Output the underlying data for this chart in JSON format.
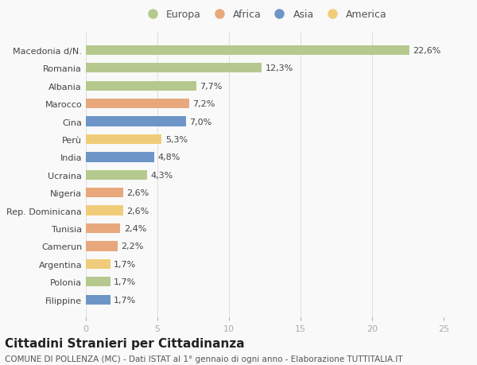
{
  "categories": [
    "Filippine",
    "Polonia",
    "Argentina",
    "Camerun",
    "Tunisia",
    "Rep. Dominicana",
    "Nigeria",
    "Ucraina",
    "India",
    "Perù",
    "Cina",
    "Marocco",
    "Albania",
    "Romania",
    "Macedonia d/N."
  ],
  "values": [
    1.7,
    1.7,
    1.7,
    2.2,
    2.4,
    2.6,
    2.6,
    4.3,
    4.8,
    5.3,
    7.0,
    7.2,
    7.7,
    12.3,
    22.6
  ],
  "continents": [
    "Asia",
    "Europa",
    "America",
    "Africa",
    "Africa",
    "America",
    "Africa",
    "Europa",
    "Asia",
    "America",
    "Asia",
    "Africa",
    "Europa",
    "Europa",
    "Europa"
  ],
  "labels": [
    "1,7%",
    "1,7%",
    "1,7%",
    "2,2%",
    "2,4%",
    "2,6%",
    "2,6%",
    "4,3%",
    "4,8%",
    "5,3%",
    "7,0%",
    "7,2%",
    "7,7%",
    "12,3%",
    "22,6%"
  ],
  "continent_colors": {
    "Europa": "#b5c98e",
    "Africa": "#e8a87c",
    "Asia": "#6e95c7",
    "America": "#f0cc7a"
  },
  "legend_order": [
    "Europa",
    "Africa",
    "Asia",
    "America"
  ],
  "xlim": [
    0,
    25
  ],
  "xticks": [
    0,
    5,
    10,
    15,
    20,
    25
  ],
  "title": "Cittadini Stranieri per Cittadinanza",
  "subtitle": "COMUNE DI POLLENZA (MC) - Dati ISTAT al 1° gennaio di ogni anno - Elaborazione TUTTITALIA.IT",
  "bg_color": "#f9f9f9",
  "grid_color": "#e0e0e0",
  "bar_height": 0.55,
  "label_fontsize": 8,
  "title_fontsize": 11,
  "subtitle_fontsize": 7.5,
  "ytick_fontsize": 8,
  "xtick_fontsize": 8,
  "legend_fontsize": 9
}
